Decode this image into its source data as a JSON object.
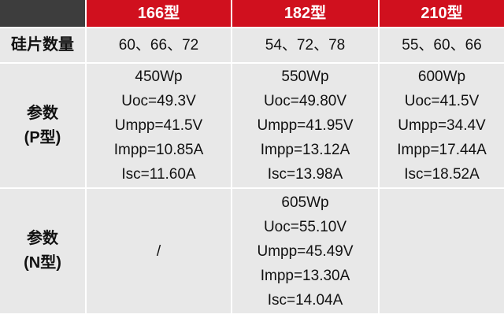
{
  "table": {
    "header": [
      "166型",
      "182型",
      "210型"
    ],
    "rows": [
      {
        "label": [
          "硅片数量"
        ],
        "cells": [
          [
            "60、66、72"
          ],
          [
            "54、72、78"
          ],
          [
            "55、60、66"
          ]
        ]
      },
      {
        "label": [
          "参数",
          "(P型)"
        ],
        "cells": [
          [
            "450Wp",
            "Uoc=49.3V",
            "Umpp=41.5V",
            "Impp=10.85A",
            "Isc=11.60A"
          ],
          [
            "550Wp",
            "Uoc=49.80V",
            "Umpp=41.95V",
            "Impp=13.12A",
            "Isc=13.98A"
          ],
          [
            "600Wp",
            "Uoc=41.5V",
            "Umpp=34.4V",
            "Impp=17.44A",
            "Isc=18.52A"
          ]
        ]
      },
      {
        "label": [
          "参数",
          "(N型)"
        ],
        "cells": [
          [
            "/"
          ],
          [
            "605Wp",
            "Uoc=55.10V",
            "Umpp=45.49V",
            "Impp=13.30A",
            "Isc=14.04A"
          ]
        ]
      }
    ]
  }
}
